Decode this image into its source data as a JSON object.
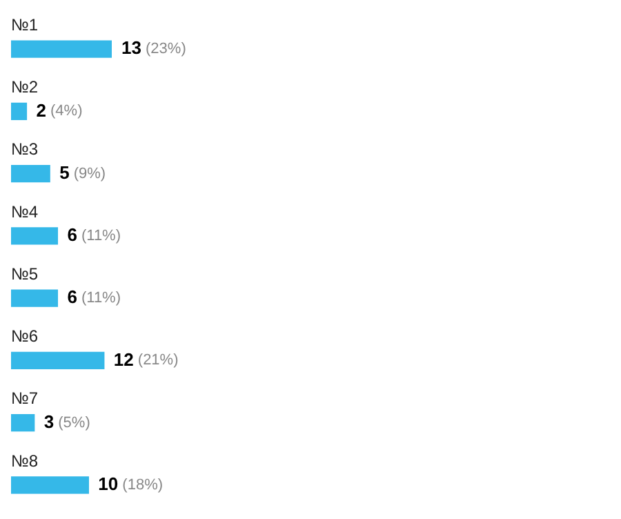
{
  "chart_data": {
    "type": "bar",
    "orientation": "horizontal",
    "categories": [
      "№1",
      "№2",
      "№3",
      "№4",
      "№5",
      "№6",
      "№7",
      "№8"
    ],
    "values": [
      13,
      2,
      5,
      6,
      6,
      12,
      3,
      10
    ],
    "value_labels": [
      "13 (23%)",
      "2 (4%)",
      "5 (9%)",
      "6 (11%)",
      "6 (11%)",
      "12 (21%)",
      "3 (5%)",
      "10 (18%)"
    ],
    "color": "#35b8e8"
  }
}
